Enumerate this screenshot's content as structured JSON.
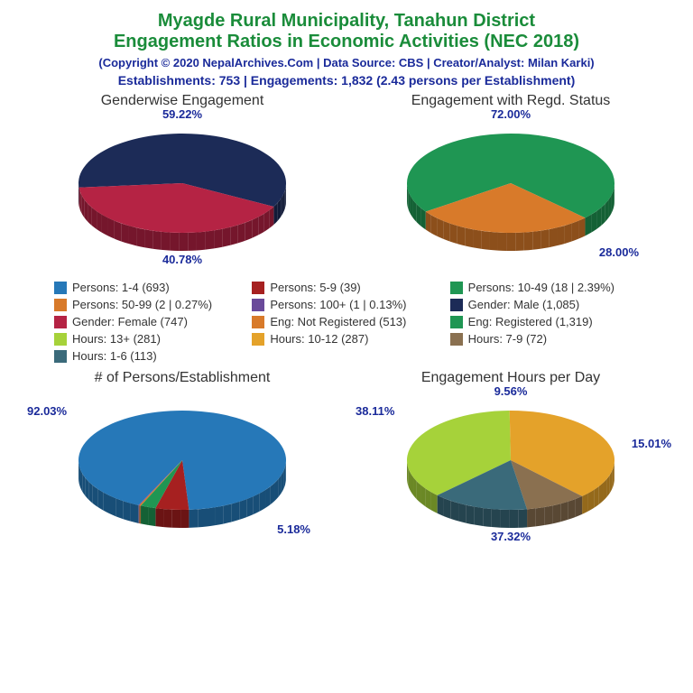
{
  "title": {
    "line1": "Myagde Rural Municipality, Tanahun District",
    "line2": "Engagement Ratios in Economic Activities (NEC 2018)",
    "color": "#1a8c3a",
    "fontsize": 20
  },
  "copyright": {
    "text": "(Copyright © 2020 NepalArchives.Com | Data Source: CBS | Creator/Analyst: Milan Karki)",
    "color": "#1a2a9a"
  },
  "stats": {
    "text": "Establishments: 753 | Engagements: 1,832 (2.43 persons per Establishment)",
    "color": "#1a2a9a"
  },
  "label_color": "#1a2a9a",
  "chart_title_color": "#333333",
  "background_color": "#ffffff",
  "pie_rx": 115,
  "pie_ry": 55,
  "pie_depth": 20,
  "charts": {
    "gender": {
      "title": "Genderwise Engagement",
      "slices": [
        {
          "pct": 59.22,
          "color": "#1c2b57",
          "label": "59.22%",
          "label_pos": "top"
        },
        {
          "pct": 40.78,
          "color": "#b52344",
          "label": "40.78%",
          "label_pos": "bottom"
        }
      ]
    },
    "regd": {
      "title": "Engagement with Regd. Status",
      "slices": [
        {
          "pct": 72.0,
          "color": "#1f9653",
          "label": "72.00%",
          "label_pos": "top"
        },
        {
          "pct": 28.0,
          "color": "#d87a2a",
          "label": "28.00%",
          "label_pos": "bottom-right"
        }
      ]
    },
    "persons": {
      "title": "# of Persons/Establishment",
      "slices": [
        {
          "pct": 92.03,
          "color": "#2678b8",
          "label": "92.03%",
          "label_pos": "top-left"
        },
        {
          "pct": 5.18,
          "color": "#a62020",
          "label": "5.18%",
          "label_pos": "bottom-right"
        },
        {
          "pct": 2.39,
          "color": "#1f9653",
          "label": "",
          "label_pos": "none"
        },
        {
          "pct": 0.27,
          "color": "#d87a2a",
          "label": "",
          "label_pos": "none"
        },
        {
          "pct": 0.13,
          "color": "#6a4a9a",
          "label": "",
          "label_pos": "none"
        }
      ]
    },
    "hours": {
      "title": "Engagement Hours per Day",
      "slices": [
        {
          "pct": 37.32,
          "color": "#a6d23a",
          "label": "37.32%",
          "label_pos": "bottom"
        },
        {
          "pct": 38.11,
          "color": "#e4a22a",
          "label": "38.11%",
          "label_pos": "top-left"
        },
        {
          "pct": 9.56,
          "color": "#8a7050",
          "label": "9.56%",
          "label_pos": "top"
        },
        {
          "pct": 15.01,
          "color": "#3a6a7a",
          "label": "15.01%",
          "label_pos": "right"
        }
      ]
    }
  },
  "legend": [
    {
      "color": "#2678b8",
      "label": "Persons: 1-4 (693)"
    },
    {
      "color": "#a62020",
      "label": "Persons: 5-9 (39)"
    },
    {
      "color": "#1f9653",
      "label": "Persons: 10-49 (18 | 2.39%)"
    },
    {
      "color": "#d87a2a",
      "label": "Persons: 50-99 (2 | 0.27%)"
    },
    {
      "color": "#6a4a9a",
      "label": "Persons: 100+ (1 | 0.13%)"
    },
    {
      "color": "#1c2b57",
      "label": "Gender: Male (1,085)"
    },
    {
      "color": "#b52344",
      "label": "Gender: Female (747)"
    },
    {
      "color": "#d87a2a",
      "label": "Eng: Not Registered (513)"
    },
    {
      "color": "#1f9653",
      "label": "Eng: Registered (1,319)"
    },
    {
      "color": "#a6d23a",
      "label": "Hours: 13+ (281)"
    },
    {
      "color": "#e4a22a",
      "label": "Hours: 10-12 (287)"
    },
    {
      "color": "#8a7050",
      "label": "Hours: 7-9 (72)"
    },
    {
      "color": "#3a6a7a",
      "label": "Hours: 1-6 (113)"
    }
  ]
}
